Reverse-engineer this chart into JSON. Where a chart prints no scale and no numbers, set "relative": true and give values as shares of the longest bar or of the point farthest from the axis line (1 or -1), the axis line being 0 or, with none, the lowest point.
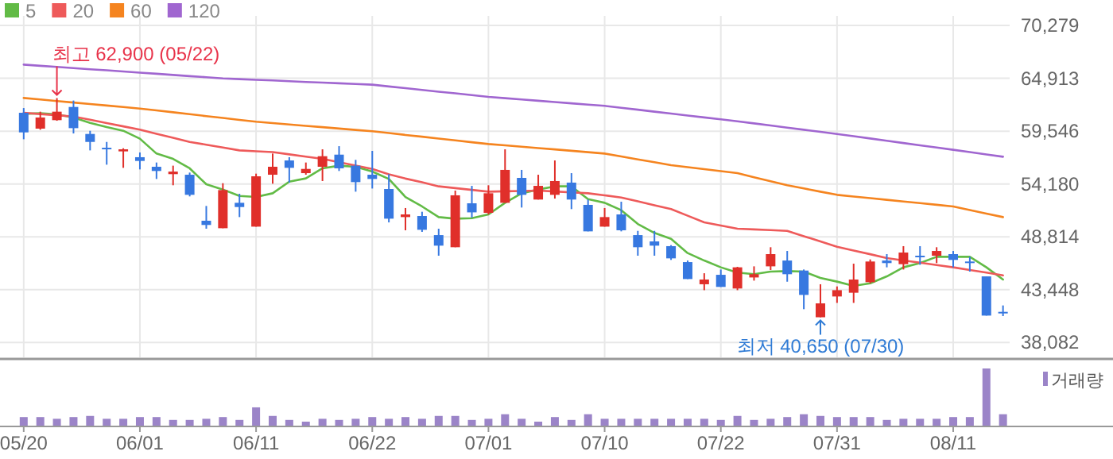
{
  "chart_data": [
    {
      "type": "candlestick",
      "categories": [
        null,
        null,
        null,
        null,
        null,
        null,
        null,
        null,
        null,
        null,
        null,
        null,
        null,
        null,
        null,
        null,
        null,
        null,
        null,
        null,
        null,
        null,
        null,
        null,
        null,
        null,
        null,
        null,
        null,
        null,
        null,
        null,
        null,
        null,
        null,
        null,
        null,
        null,
        null,
        null,
        null,
        null,
        null,
        null,
        null,
        null,
        null,
        null,
        null,
        null,
        null,
        null,
        null,
        null,
        null,
        null,
        null,
        null,
        null,
        null
      ],
      "ohlc": [
        [
          61410,
          61890,
          58720,
          59420
        ],
        [
          59800,
          61520,
          59690,
          60930
        ],
        [
          60660,
          62900,
          60600,
          61520
        ],
        [
          62000,
          62650,
          59310,
          59850
        ],
        [
          59260,
          59580,
          57590,
          58450
        ],
        [
          57860,
          58450,
          56140,
          57760
        ],
        [
          57490,
          57810,
          55820,
          57700
        ],
        [
          56900,
          57380,
          55660,
          56520
        ],
        [
          55930,
          56360,
          54690,
          55500
        ],
        [
          55180,
          56040,
          54050,
          55440
        ],
        [
          55120,
          55340,
          52920,
          53080
        ],
        [
          50450,
          51950,
          49640,
          50020
        ],
        [
          49690,
          54260,
          49690,
          53560
        ],
        [
          52270,
          53190,
          50820,
          51840
        ],
        [
          49850,
          55230,
          49850,
          54960
        ],
        [
          55120,
          57270,
          54210,
          55930
        ],
        [
          56570,
          56900,
          54320,
          55820
        ],
        [
          55280,
          56360,
          55120,
          55710
        ],
        [
          55930,
          57700,
          54480,
          57000
        ],
        [
          57160,
          58020,
          55500,
          55770
        ],
        [
          56040,
          56630,
          53400,
          54370
        ],
        [
          55120,
          57540,
          53720,
          54690
        ],
        [
          53670,
          55180,
          50280,
          50660
        ],
        [
          50820,
          51740,
          49480,
          51090
        ],
        [
          50930,
          51360,
          49320,
          49530
        ],
        [
          48990,
          49640,
          46900,
          47920
        ],
        [
          47760,
          53510,
          47760,
          53030
        ],
        [
          52220,
          53990,
          50770,
          51300
        ],
        [
          51250,
          54050,
          51090,
          53240
        ],
        [
          52270,
          57700,
          52270,
          55610
        ],
        [
          54800,
          55610,
          51790,
          53080
        ],
        [
          52600,
          55120,
          52600,
          53990
        ],
        [
          53080,
          56570,
          52700,
          54480
        ],
        [
          54320,
          55280,
          51630,
          52600
        ],
        [
          52060,
          52600,
          49370,
          49370
        ],
        [
          49850,
          51740,
          49850,
          50820
        ],
        [
          51090,
          52380,
          49370,
          49480
        ],
        [
          48990,
          49420,
          46900,
          47760
        ],
        [
          48350,
          49420,
          46900,
          47920
        ],
        [
          47870,
          47970,
          46470,
          46630
        ],
        [
          46250,
          46410,
          44530,
          44530
        ],
        [
          44000,
          45120,
          43400,
          44480
        ],
        [
          44960,
          45500,
          43730,
          43730
        ],
        [
          43570,
          45770,
          43400,
          45720
        ],
        [
          44690,
          45820,
          44370,
          45020
        ],
        [
          45820,
          47760,
          45450,
          47060
        ],
        [
          46410,
          47380,
          44260,
          45020
        ],
        [
          45390,
          45500,
          41470,
          42920
        ],
        [
          40650,
          44000,
          40650,
          42060
        ],
        [
          42760,
          43780,
          42110,
          43400
        ],
        [
          43140,
          46090,
          42110,
          44480
        ],
        [
          44210,
          46520,
          44100,
          46310
        ],
        [
          46410,
          47060,
          45720,
          46150
        ],
        [
          46040,
          47870,
          45500,
          47220
        ],
        [
          46900,
          47870,
          45980,
          46740
        ],
        [
          46900,
          47760,
          46150,
          47380
        ],
        [
          47060,
          47380,
          45720,
          46470
        ],
        [
          46310,
          46790,
          45290,
          46150
        ],
        [
          44800,
          44800,
          40820,
          40820
        ],
        [
          41200,
          41850,
          40770,
          41040
        ]
      ],
      "colors": [
        "#3778e0",
        "#e02f2a",
        "#e02f2a",
        "#3778e0",
        "#3778e0",
        "#3778e0",
        "#e02f2a",
        "#3778e0",
        "#3778e0",
        "#e02f2a",
        "#3778e0",
        "#3778e0",
        "#e02f2a",
        "#3778e0",
        "#e02f2a",
        "#e02f2a",
        "#3778e0",
        "#e02f2a",
        "#e02f2a",
        "#3778e0",
        "#3778e0",
        "#3778e0",
        "#3778e0",
        "#e02f2a",
        "#3778e0",
        "#3778e0",
        "#e02f2a",
        "#3778e0",
        "#e02f2a",
        "#e02f2a",
        "#3778e0",
        "#e02f2a",
        "#e02f2a",
        "#3778e0",
        "#3778e0",
        "#e02f2a",
        "#3778e0",
        "#3778e0",
        "#3778e0",
        "#3778e0",
        "#3778e0",
        "#e02f2a",
        "#3778e0",
        "#e02f2a",
        "#e02f2a",
        "#e02f2a",
        "#3778e0",
        "#3778e0",
        "#e02f2a",
        "#e02f2a",
        "#e02f2a",
        "#e02f2a",
        "#3778e0",
        "#e02f2a",
        "#3778e0",
        "#e02f2a",
        "#3778e0",
        "#3778e0",
        "#3778e0",
        "#3778e0"
      ],
      "series": [
        {
          "name": "5",
          "type": "line",
          "color": "#62bb46",
          "values": [
            61300,
            61360,
            61250,
            60930,
            60390,
            59960,
            59580,
            58780,
            57270,
            56730,
            55770,
            54150,
            53620,
            52970,
            52860,
            53240,
            54420,
            54750,
            55770,
            56040,
            55930,
            55440,
            54690,
            52860,
            51900,
            50820,
            50660,
            50710,
            51090,
            52270,
            53240,
            53620,
            53940,
            53940,
            52650,
            52270,
            51520,
            50120,
            49210,
            48620,
            47170,
            46410,
            45720,
            45180,
            45020,
            45290,
            45340,
            45290,
            44640,
            44270,
            43840,
            44100,
            44800,
            45720,
            46150,
            46790,
            46790,
            46790,
            45720,
            44480
          ]
        },
        {
          "name": "20",
          "type": "line",
          "color": "#ee5a5a",
          "values": [
            61410,
            61280,
            61160,
            61030,
            60700,
            60360,
            60030,
            59690,
            59280,
            58870,
            58450,
            58170,
            57880,
            57590,
            57500,
            57420,
            57190,
            56960,
            56730,
            56390,
            56050,
            55700,
            55160,
            54730,
            54360,
            53940,
            53760,
            53580,
            53400,
            53440,
            53470,
            53510,
            53420,
            53330,
            53240,
            53030,
            52810,
            52420,
            52020,
            51630,
            50960,
            50280,
            49960,
            49640,
            49570,
            49500,
            49420,
            48880,
            48350,
            47810,
            47430,
            47050,
            46660,
            46420,
            46190,
            45950,
            45720,
            45450,
            45180,
            44910
          ]
        },
        {
          "name": "60",
          "type": "line",
          "color": "#f5841f",
          "values": [
            62910,
            62760,
            62600,
            62450,
            62300,
            62150,
            61990,
            61840,
            61650,
            61460,
            61270,
            61070,
            60880,
            60690,
            60500,
            60360,
            60220,
            60080,
            59950,
            59810,
            59670,
            59530,
            59350,
            59160,
            58980,
            58790,
            58610,
            58420,
            58240,
            58100,
            57960,
            57820,
            57690,
            57550,
            57410,
            57270,
            56980,
            56680,
            56390,
            56090,
            55890,
            55690,
            55480,
            55280,
            54870,
            54460,
            54050,
            53730,
            53400,
            53080,
            52910,
            52740,
            52570,
            52400,
            52240,
            52070,
            51900,
            51540,
            51180,
            50820
          ]
        },
        {
          "name": "120",
          "type": "line",
          "color": "#a066d0",
          "values": [
            66300,
            66180,
            66070,
            65950,
            65830,
            65720,
            65600,
            65480,
            65370,
            65250,
            65130,
            65020,
            64900,
            64830,
            64760,
            64690,
            64620,
            64540,
            64470,
            64400,
            64330,
            64260,
            64080,
            63910,
            63730,
            63550,
            63380,
            63200,
            63020,
            62890,
            62760,
            62630,
            62500,
            62370,
            62240,
            62110,
            61910,
            61720,
            61520,
            61330,
            61130,
            60940,
            60740,
            60550,
            60330,
            60120,
            59900,
            59690,
            59470,
            59260,
            59030,
            58800,
            58570,
            58340,
            58110,
            57880,
            57650,
            57420,
            57180,
            56950
          ]
        }
      ],
      "ylim": [
        36580,
        70279
      ],
      "yticks": [
        {
          "value": 38082,
          "label": "38,082"
        },
        {
          "value": 43448,
          "label": "43,448"
        },
        {
          "value": 48814,
          "label": "48,814"
        },
        {
          "value": 54180,
          "label": "54,180"
        },
        {
          "value": 59546,
          "label": "59,546"
        },
        {
          "value": 64913,
          "label": "64,913"
        },
        {
          "value": 70279,
          "label": "70,279"
        }
      ],
      "grid": true,
      "legend": "top left",
      "tick_labels": "y",
      "annotations": [
        "최고 62,900 (05/22)",
        "최저 40,650 (07/30)"
      ]
    },
    {
      "type": "bar",
      "categories": [
        "05/20",
        null,
        null,
        null,
        null,
        null,
        null,
        "06/01",
        null,
        null,
        null,
        null,
        null,
        null,
        "06/11",
        null,
        null,
        null,
        null,
        null,
        null,
        "06/22",
        null,
        null,
        null,
        null,
        null,
        null,
        "07/01",
        null,
        null,
        null,
        null,
        null,
        null,
        "07/10",
        null,
        null,
        null,
        null,
        null,
        null,
        "07/22",
        null,
        null,
        null,
        null,
        null,
        null,
        "07/31",
        null,
        null,
        null,
        null,
        null,
        null,
        "08/11",
        null,
        null,
        null
      ],
      "series": [
        {
          "name": "거래량",
          "color": "#9b84c8",
          "values": [
            0.15,
            0.15,
            0.12,
            0.15,
            0.17,
            0.12,
            0.12,
            0.15,
            0.15,
            0.1,
            0.1,
            0.12,
            0.15,
            0.1,
            0.32,
            0.17,
            0.1,
            0.07,
            0.12,
            0.1,
            0.12,
            0.15,
            0.12,
            0.15,
            0.12,
            0.17,
            0.17,
            0.1,
            0.12,
            0.2,
            0.12,
            0.07,
            0.15,
            0.1,
            0.2,
            0.12,
            0.12,
            0.12,
            0.12,
            0.12,
            0.12,
            0.12,
            0.1,
            0.17,
            0.1,
            0.12,
            0.15,
            0.2,
            0.17,
            0.15,
            0.15,
            0.15,
            0.1,
            0.12,
            0.12,
            0.12,
            0.15,
            0.15,
            1,
            0.2
          ]
        }
      ],
      "relative": true,
      "legend": "top right",
      "tick_labels": "x"
    }
  ]
}
